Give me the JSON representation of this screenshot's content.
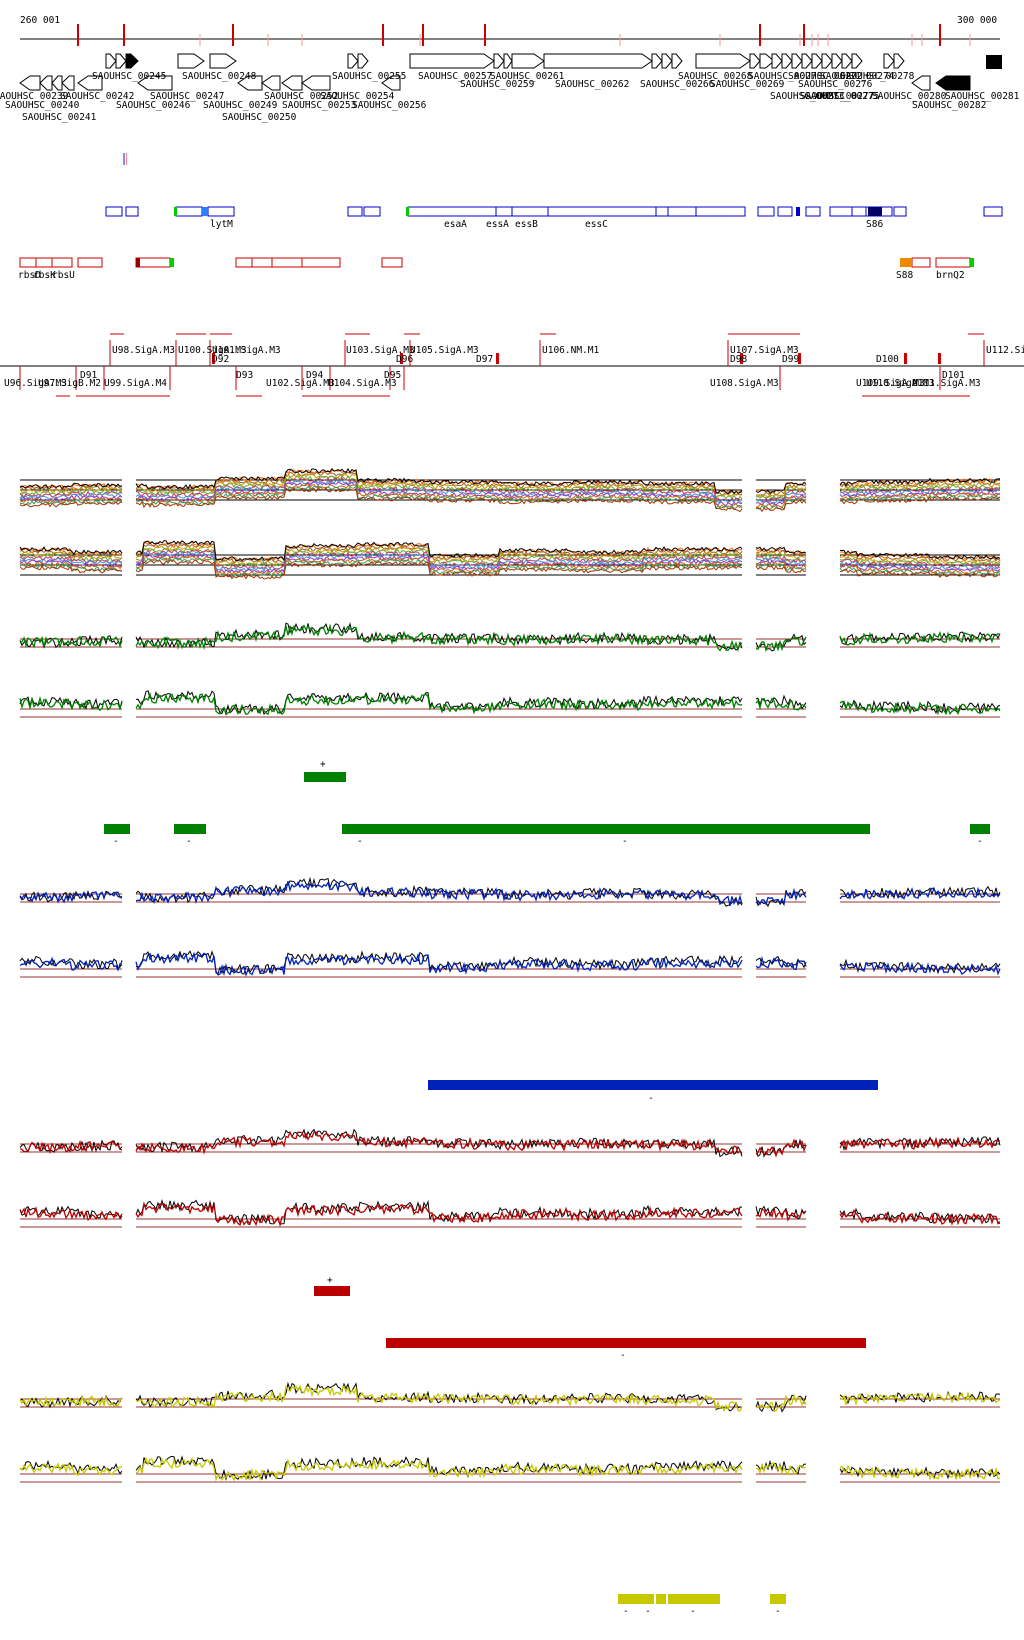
{
  "ruler": {
    "start_label": "260 001",
    "end_label": "300 000"
  },
  "genes": {
    "strand_plus": [
      {
        "label": "SAOUHSC_00245"
      },
      {
        "label": "SAOUHSC_00248"
      },
      {
        "label": "SAOUHSC_00255"
      },
      {
        "label": "SAOUHSC_00257"
      },
      {
        "label": "SAOUHSC_00259"
      },
      {
        "label": "SAOUHSC_00261"
      },
      {
        "label": "SAOUHSC_00262"
      },
      {
        "label": "SAOUHSC_00266"
      },
      {
        "label": "SAOUHSC_00268"
      },
      {
        "label": "SAOUHSC_00269"
      },
      {
        "label": "SAOUHSC_00270"
      },
      {
        "label": "SAOUHSC_00272"
      },
      {
        "label": "SAOUHSC_00273"
      },
      {
        "label": "SAOUHSC_00274"
      },
      {
        "label": "SAOUHSC_00275"
      },
      {
        "label": "SAOUHSC_00276"
      },
      {
        "label": "SAOUHSC_00277"
      },
      {
        "label": "SAOUHSC_00278"
      }
    ],
    "strand_minus": [
      {
        "label": "SAOUHSC_00239"
      },
      {
        "label": "SAOUHSC_00240"
      },
      {
        "label": "SAOUHSC_00241"
      },
      {
        "label": "SAOUHSC_00242"
      },
      {
        "label": "SAOUHSC_00246"
      },
      {
        "label": "SAOUHSC_00247"
      },
      {
        "label": "SAOUHSC_00249"
      },
      {
        "label": "SAOUHSC_00250"
      },
      {
        "label": "SAOUHSC_00252"
      },
      {
        "label": "SAOUHSC_00253"
      },
      {
        "label": "SAOUHSC_00254"
      },
      {
        "label": "SAOUHSC_00256"
      },
      {
        "label": "SAOUHSC_00280"
      },
      {
        "label": "SAOUHSC_00281"
      },
      {
        "label": "SAOUHSC_00282"
      }
    ]
  },
  "features_blue": [
    {
      "label": "lytM"
    },
    {
      "label": "esaA"
    },
    {
      "label": "essA"
    },
    {
      "label": "essB"
    },
    {
      "label": "essC"
    },
    {
      "label": "S86"
    }
  ],
  "features_red": [
    {
      "label": "rbsD"
    },
    {
      "label": "rbsK"
    },
    {
      "label": "rbsU"
    },
    {
      "label": "S88"
    },
    {
      "label": "brnQ2"
    }
  ],
  "segments_upper": [
    {
      "label": "U98.SigA.M3"
    },
    {
      "label": "U100.SigA.M3"
    },
    {
      "label": "U101.SigA.M3"
    },
    {
      "label": "U103.SigA.M3"
    },
    {
      "label": "U105.SigA.M3"
    },
    {
      "label": "U106.NM.M1"
    },
    {
      "label": "U107.SigA.M3"
    },
    {
      "label": "U112.SigA.M3"
    }
  ],
  "segments_lower": [
    {
      "label": "U96.SigA.M3"
    },
    {
      "label": "U97.SigB.M2"
    },
    {
      "label": "U99.SigA.M4"
    },
    {
      "label": "U102.SigA.M3"
    },
    {
      "label": "U104.SigA.M3"
    },
    {
      "label": "U108.SigA.M3"
    },
    {
      "label": "U109.SigA.M3"
    },
    {
      "label": "U110.SigA.M3"
    },
    {
      "label": "U111.SigA.M3"
    }
  ],
  "downshifts": [
    {
      "label": "D91"
    },
    {
      "label": "D92"
    },
    {
      "label": "D93"
    },
    {
      "label": "D94"
    },
    {
      "label": "D95"
    },
    {
      "label": "D96"
    },
    {
      "label": "D97"
    },
    {
      "label": "D98"
    },
    {
      "label": "D99"
    },
    {
      "label": "D100"
    },
    {
      "label": "D101"
    }
  ],
  "conditions": [
    {
      "color": "#008000",
      "plus_marker": "+",
      "minus_marker": "-"
    },
    {
      "color": "#0022bb",
      "plus_marker": "",
      "minus_marker": "-"
    },
    {
      "color": "#bb0000",
      "plus_marker": "+",
      "minus_marker": "-"
    },
    {
      "color": "#c8c800",
      "plus_marker": "",
      "minus_marker": "-"
    }
  ],
  "colors": {
    "gene_fill": "#ffffff",
    "gene_stroke": "#000000",
    "highlight_gene": "#000000",
    "feature_blue": "#0000cc",
    "feature_red": "#cc0000",
    "reference_trace": "#000000",
    "threshold_line": "#993333",
    "green_accent": "#00cc00",
    "orange_accent": "#ee8800"
  }
}
